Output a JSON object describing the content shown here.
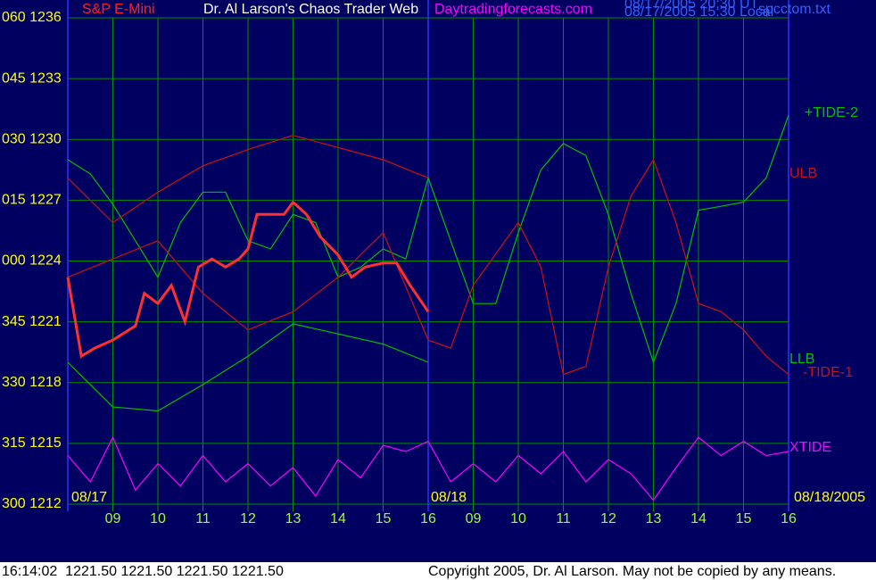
{
  "chart_data": {
    "type": "line",
    "title": "Dr. Al Larson's Chaos Trader Web",
    "subtitle": "Daytradingforecasts.com",
    "annotations": [
      "S&P E-Mini",
      "08/17/2005 20:30 UT",
      "08/17/2005 15:30 Local",
      "spcctom.txt",
      "08/17",
      "08/18",
      "08/18/2005",
      "16:14:02  1221.50 1221.50 1221.50 1221.50",
      "Copyright 2005, Dr. Al Larson. May not be copied by any means."
    ],
    "xlim": [
      0,
      16
    ],
    "ylim": [
      1212,
      1236
    ],
    "grid": true,
    "xticks": [
      {
        "value": 1,
        "label": "09"
      },
      {
        "value": 2,
        "label": "10"
      },
      {
        "value": 3,
        "label": "11"
      },
      {
        "value": 4,
        "label": "12"
      },
      {
        "value": 5,
        "label": "13"
      },
      {
        "value": 6,
        "label": "14"
      },
      {
        "value": 7,
        "label": "15"
      },
      {
        "value": 8,
        "label": "16"
      },
      {
        "value": 9,
        "label": "09"
      },
      {
        "value": 10,
        "label": "10"
      },
      {
        "value": 11,
        "label": "11"
      },
      {
        "value": 12,
        "label": "12"
      },
      {
        "value": 13,
        "label": "13"
      },
      {
        "value": 14,
        "label": "14"
      },
      {
        "value": 15,
        "label": "15"
      },
      {
        "value": 16,
        "label": "16"
      }
    ],
    "yticks": [
      {
        "value": 1212,
        "label": "300 1212"
      },
      {
        "value": 1215,
        "label": "315 1215"
      },
      {
        "value": 1218,
        "label": "330 1218"
      },
      {
        "value": 1221,
        "label": "345 1221"
      },
      {
        "value": 1224,
        "label": "000 1224"
      },
      {
        "value": 1227,
        "label": "015 1227"
      },
      {
        "value": 1230,
        "label": "030 1230"
      },
      {
        "value": 1233,
        "label": "045 1233"
      },
      {
        "value": 1236,
        "label": "060 1236"
      }
    ],
    "series": [
      {
        "name": "+TIDE-2",
        "color": "#00c000",
        "x": [
          0,
          0.5,
          1,
          1.5,
          2,
          2.5,
          3,
          3.5,
          4,
          4.5,
          5,
          5.5,
          6,
          6.5,
          7,
          7.5,
          8,
          9,
          9.5,
          10,
          10.5,
          11,
          11.5,
          12,
          12.5,
          13,
          13.5,
          14,
          14.5,
          15,
          15.5,
          16
        ],
        "values": [
          1229.0,
          1228.3,
          1226.8,
          1225.0,
          1223.2,
          1225.9,
          1227.4,
          1227.4,
          1225.0,
          1224.6,
          1226.3,
          1225.9,
          1223.2,
          1223.7,
          1224.6,
          1224.1,
          1228.1,
          1221.9,
          1221.9,
          1225.4,
          1228.5,
          1229.8,
          1229.2,
          1226.3,
          1222.4,
          1219.0,
          1221.9,
          1226.5,
          1226.7,
          1226.9,
          1228.1,
          1231.2
        ]
      },
      {
        "name": "ULB",
        "color": "#d01010",
        "x": [
          0,
          1,
          2,
          3,
          4,
          5,
          6,
          7,
          8
        ],
        "values": [
          1228.1,
          1225.9,
          1227.4,
          1228.7,
          1229.5,
          1230.2,
          1229.6,
          1229.0,
          1228.1
        ]
      },
      {
        "name": "LLB",
        "color": "#00c000",
        "x": [
          0,
          1,
          2,
          3,
          4,
          5,
          6,
          7,
          8
        ],
        "values": [
          1219.0,
          1216.8,
          1216.6,
          1217.9,
          1219.3,
          1220.9,
          1220.4,
          1219.9,
          1219.0
        ]
      },
      {
        "name": "-TIDE-1",
        "color": "#d01010",
        "x": [
          0,
          1,
          2,
          3,
          4,
          5,
          6,
          7,
          8,
          8.5,
          9,
          10,
          10.5,
          11,
          11.5,
          12,
          12.5,
          13,
          13.5,
          14,
          14.5,
          15,
          15.5,
          16
        ],
        "values": [
          1223.2,
          1224.1,
          1225.0,
          1222.4,
          1220.6,
          1221.5,
          1223.2,
          1225.4,
          1220.1,
          1219.7,
          1222.8,
          1225.9,
          1223.7,
          1218.4,
          1218.8,
          1223.7,
          1227.2,
          1229.0,
          1225.9,
          1221.9,
          1221.5,
          1220.6,
          1219.3,
          1218.4
        ]
      },
      {
        "name": "XTIDE",
        "color": "#ff00ff",
        "x": [
          0,
          0.5,
          1,
          1.5,
          2,
          2.5,
          3,
          3.5,
          4,
          4.5,
          5,
          5.5,
          6,
          6.5,
          7,
          7.5,
          8,
          8.5,
          9,
          9.5,
          10,
          10.5,
          11,
          11.5,
          12,
          12.5,
          13,
          13.5,
          14,
          14.5,
          15,
          15.5,
          16
        ],
        "values": [
          1214.4,
          1213.1,
          1215.3,
          1212.7,
          1214.0,
          1212.9,
          1214.4,
          1213.1,
          1214.0,
          1212.9,
          1213.8,
          1212.4,
          1214.2,
          1213.3,
          1214.9,
          1214.6,
          1215.1,
          1213.1,
          1214.0,
          1213.1,
          1214.4,
          1213.5,
          1214.6,
          1213.1,
          1214.2,
          1213.5,
          1212.2,
          1213.8,
          1215.3,
          1214.4,
          1215.1,
          1214.4,
          1214.6
        ]
      },
      {
        "color": "#ff3030",
        "x": [
          0,
          0.3,
          0.6,
          1,
          1.5,
          1.7,
          2,
          2.3,
          2.6,
          2.9,
          3.2,
          3.5,
          3.8,
          4,
          4.2,
          4.5,
          4.8,
          5,
          5.3,
          5.6,
          6,
          6.3,
          6.6,
          7,
          7.3,
          7.6,
          8
        ],
        "values": [
          1223.2,
          1219.3,
          1219.7,
          1220.1,
          1220.8,
          1222.4,
          1221.9,
          1222.8,
          1221.0,
          1223.7,
          1224.1,
          1223.7,
          1224.1,
          1224.6,
          1226.3,
          1226.3,
          1226.3,
          1226.9,
          1226.3,
          1225.2,
          1224.3,
          1223.2,
          1223.7,
          1223.9,
          1223.9,
          1222.8,
          1221.5
        ]
      }
    ]
  }
}
